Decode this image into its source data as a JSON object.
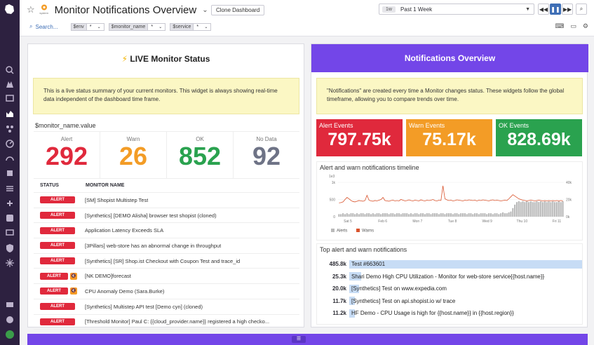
{
  "header": {
    "title": "Monitor Notifications Overview",
    "clone_label": "Clone Dashboard",
    "time_pill": "1w",
    "time_label": "Past 1 Week",
    "logo_caption": "system"
  },
  "filters": {
    "search_label": "Search...",
    "vars": [
      {
        "key": "$env",
        "value": "*"
      },
      {
        "key": "$monitor_name",
        "value": "*"
      },
      {
        "key": "$service",
        "value": "*"
      }
    ]
  },
  "left": {
    "title": "LIVE Monitor Status",
    "note": "This is a live status summary of your current monitors. This widget is always showing real-time data independent of the dashboard time frame.",
    "monitor_title": "$monitor_name.value",
    "counts": [
      {
        "label": "Alert",
        "value": "292",
        "color": "#e0293c"
      },
      {
        "label": "Warn",
        "value": "26",
        "color": "#f39c26"
      },
      {
        "label": "OK",
        "value": "852",
        "color": "#2aa24f"
      },
      {
        "label": "No Data",
        "value": "92",
        "color": "#6e7386"
      }
    ],
    "columns": {
      "status": "STATUS",
      "name": "MONITOR NAME"
    },
    "rows": [
      {
        "status": "ALERT",
        "muted": false,
        "name": "[SM] Shopist Multistep Test"
      },
      {
        "status": "ALERT",
        "muted": false,
        "name": "[Synthetics] [DEMO Alisha] browser test shopist (cloned)"
      },
      {
        "status": "ALERT",
        "muted": false,
        "name": "Application Latency Exceeds SLA"
      },
      {
        "status": "ALERT",
        "muted": false,
        "name": "[3Pillars] web-store has an abnormal change in throughput"
      },
      {
        "status": "ALERT",
        "muted": false,
        "name": "[Synthetics] [SR] Shop.ist Checkout with Coupon Test and trace_id"
      },
      {
        "status": "ALERT",
        "muted": true,
        "name": "[NK DEMO]forecast"
      },
      {
        "status": "ALERT",
        "muted": true,
        "name": "CPU Anomaly Demo (Sara.Burke)"
      },
      {
        "status": "ALERT",
        "muted": false,
        "name": "[Synthetics] Multistep API test [Demo cyn] (cloned)"
      },
      {
        "status": "ALERT",
        "muted": false,
        "name": "[Threshold Monitor] Paul C: {{cloud_provider.name}} registered a high checko..."
      }
    ]
  },
  "right": {
    "title": "Notifications Overview",
    "note": "\"Notifications\" are created every time a Monitor changes status. These widgets follow the global timeframe, allowing you to compare trends over time.",
    "events": [
      {
        "label": "Alert Events",
        "value": "797.75k",
        "color": "#e0293c"
      },
      {
        "label": "Warn Events",
        "value": "75.17k",
        "color": "#f39c26"
      },
      {
        "label": "OK Events",
        "value": "828.69k",
        "color": "#2aa24f"
      }
    ],
    "timeline_title": "Alert and warn notifications timeline",
    "top_title": "Top alert and warn notifications",
    "top": [
      {
        "value": "485.8k",
        "label": "Test #663601",
        "fraction": 1.0
      },
      {
        "value": "25.3k",
        "label": "Shari Demo High CPU Utilization - Monitor for web-store service{{host.name}}",
        "fraction": 0.052
      },
      {
        "value": "20.0k",
        "label": "[Synthetics] Test on www.expedia.com",
        "fraction": 0.041
      },
      {
        "value": "11.7k",
        "label": "[Synthetics] Test on api.shopist.io w/ trace",
        "fraction": 0.024
      },
      {
        "value": "11.2k",
        "label": "HF Demo - CPU Usage is high for {{host.name}} in {{host.region}}",
        "fraction": 0.023
      }
    ]
  },
  "chart_data": {
    "type": "bar",
    "title": "Alert and warn notifications timeline",
    "x_ticks": [
      "Sat 5",
      "Feb 6",
      "Mon 7",
      "Tue 8",
      "Wed 9",
      "Thu 10",
      "Fri 11"
    ],
    "y_left_label": "1e3",
    "y_left_ticks": [
      "1k",
      "500",
      "0"
    ],
    "y_right_ticks": [
      "40k",
      "20k",
      "0k"
    ],
    "legend": [
      "Alerts",
      "Warns"
    ],
    "colors": {
      "Alerts": "#b9b9b9",
      "Warns": "#d9532c"
    },
    "series": [
      {
        "name": "Alerts",
        "axis": "right",
        "values": [
          3,
          3,
          4,
          3,
          4,
          3,
          4,
          4,
          3,
          4,
          3,
          4,
          4,
          3,
          4,
          4,
          3,
          4,
          3,
          4,
          4,
          3,
          4,
          4,
          4,
          3,
          4,
          4,
          3,
          4,
          4,
          3,
          4,
          4,
          4,
          3,
          4,
          3,
          4,
          4,
          3,
          4,
          4,
          3,
          4,
          4,
          3,
          4,
          4,
          4,
          3,
          4,
          4,
          3,
          4,
          4,
          4,
          3,
          4,
          4,
          3,
          4,
          4,
          4,
          3,
          4,
          4,
          3,
          4,
          4,
          3,
          4,
          4,
          4,
          3,
          4,
          4,
          3,
          4,
          4,
          3,
          4,
          5,
          4,
          4,
          5,
          6,
          10,
          14,
          17,
          18,
          17,
          18,
          17,
          18,
          17,
          18,
          17,
          17,
          18,
          17,
          18,
          17,
          18,
          17,
          18,
          17,
          18,
          17,
          17,
          18,
          17,
          18
        ]
      },
      {
        "name": "Warns",
        "axis": "left",
        "values": [
          400,
          410,
          430,
          500,
          560,
          520,
          470,
          440,
          430,
          450,
          470,
          460,
          450,
          470,
          620,
          480,
          460,
          450,
          470,
          460,
          480,
          500,
          560,
          470,
          460,
          450,
          470,
          480,
          460,
          470,
          460,
          500,
          480,
          460,
          470,
          490,
          470,
          460,
          480,
          470,
          460,
          490,
          470,
          460,
          480,
          470,
          480,
          500,
          470,
          460,
          480,
          470,
          900,
          520,
          490,
          470,
          480,
          460,
          470,
          490,
          480,
          470,
          460,
          480,
          470,
          490,
          480,
          470,
          480,
          460,
          480,
          470,
          490,
          480,
          470,
          460,
          480,
          490,
          470,
          480,
          470,
          460,
          470,
          480,
          470,
          520,
          580,
          640,
          600,
          560,
          520,
          500,
          480,
          470,
          460,
          470,
          480,
          470,
          460,
          470,
          480,
          470,
          460,
          470,
          460,
          470,
          460,
          470,
          460,
          470,
          460,
          470,
          460
        ]
      }
    ]
  }
}
